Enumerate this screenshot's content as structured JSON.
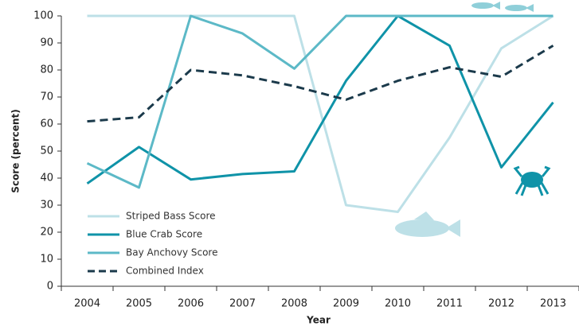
{
  "chart_data": {
    "type": "line",
    "categories": [
      "2004",
      "2005",
      "2006",
      "2007",
      "2008",
      "2009",
      "2010",
      "2011",
      "2012",
      "2013"
    ],
    "x_label": "Year",
    "y_label": "Score (percent)",
    "ylim": [
      0,
      100
    ],
    "yticks": [
      0,
      10,
      20,
      30,
      40,
      50,
      60,
      70,
      80,
      90,
      100
    ],
    "grid": false,
    "legend": "lower left",
    "series": [
      {
        "name": "Striped Bass Score",
        "color": "#bde0e7",
        "dash": false,
        "values": [
          100,
          100,
          100,
          100,
          100,
          30,
          27.5,
          55,
          88,
          100
        ]
      },
      {
        "name": "Blue Crab Score",
        "color": "#0f93a8",
        "dash": false,
        "values": [
          38,
          51.5,
          39.5,
          41.5,
          42.5,
          76,
          100,
          89,
          44,
          68
        ]
      },
      {
        "name": "Bay Anchovy Score",
        "color": "#5cb9c7",
        "dash": false,
        "values": [
          45.5,
          36.5,
          100,
          93.5,
          80.5,
          100,
          100,
          100,
          100,
          100
        ]
      },
      {
        "name": "Combined Index",
        "color": "#1b3a4b",
        "dash": true,
        "values": [
          61,
          62.5,
          80,
          78,
          74,
          69,
          76,
          81,
          77.5,
          89
        ]
      }
    ]
  }
}
